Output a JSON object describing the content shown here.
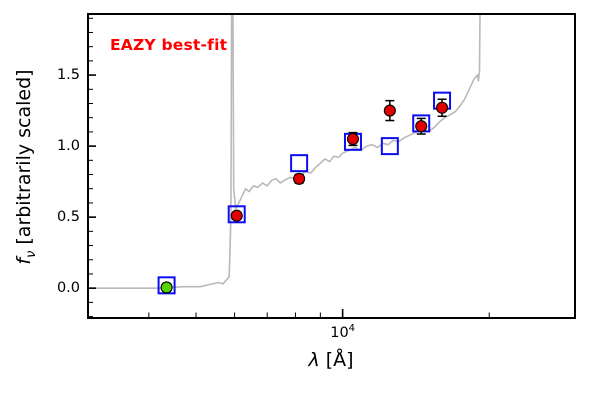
{
  "title_annotation": "EAZY best-fit",
  "axes": {
    "ylabel": {
      "var": "f",
      "sub": "ν",
      "rest": " [arbitrarily scaled]"
    },
    "xlabel": {
      "var": "λ",
      "rest": " [Å]"
    },
    "xtick_label": {
      "base": "10",
      "exp": "4"
    }
  },
  "colors": {
    "annotation": "#ff0000",
    "spectrum": "#b9b9b9",
    "model_square": "#0d0df2",
    "observed_red": "#e00000",
    "flagged_green": "#55d400",
    "frame": "#000000"
  },
  "chart_data": {
    "type": "line",
    "title": "EAZY best-fit",
    "xlabel": "λ [Å]",
    "ylabel": "f_ν [arbitrarily scaled]",
    "xscale": "log",
    "xlim": [
      3000,
      30000
    ],
    "ylim": [
      -0.21,
      1.93
    ],
    "yticks": [
      {
        "value": 0.0,
        "label": "0.0"
      },
      {
        "value": 0.5,
        "label": "0.5"
      },
      {
        "value": 1.0,
        "label": "1.0"
      },
      {
        "value": 1.5,
        "label": "1.5"
      }
    ],
    "ytick_minor_step": 0.1,
    "xticks_major": [
      10000
    ],
    "xticks_minor": [
      4000,
      5000,
      6000,
      7000,
      8000,
      9000,
      20000
    ],
    "legend": "none",
    "series": {
      "model_spectrum": {
        "name": "best-fit model spectrum",
        "color": "#b9b9b9",
        "points": [
          [
            3000,
            0.0
          ],
          [
            3600,
            0.0
          ],
          [
            4200,
            0.0
          ],
          [
            4700,
            0.01
          ],
          [
            5100,
            0.01
          ],
          [
            5400,
            0.03
          ],
          [
            5550,
            0.04
          ],
          [
            5680,
            0.03
          ],
          [
            5780,
            0.06
          ],
          [
            5850,
            0.08
          ],
          [
            5895,
            0.5
          ],
          [
            5920,
            2.3
          ],
          [
            5945,
            2.3
          ],
          [
            5975,
            0.7
          ],
          [
            6030,
            0.56
          ],
          [
            6120,
            0.6
          ],
          [
            6220,
            0.65
          ],
          [
            6320,
            0.7
          ],
          [
            6430,
            0.68
          ],
          [
            6550,
            0.72
          ],
          [
            6700,
            0.71
          ],
          [
            6850,
            0.74
          ],
          [
            7000,
            0.72
          ],
          [
            7150,
            0.76
          ],
          [
            7300,
            0.77
          ],
          [
            7450,
            0.74
          ],
          [
            7600,
            0.76
          ],
          [
            7800,
            0.78
          ],
          [
            8000,
            0.77
          ],
          [
            8200,
            0.8
          ],
          [
            8400,
            0.82
          ],
          [
            8600,
            0.81
          ],
          [
            8800,
            0.85
          ],
          [
            9000,
            0.88
          ],
          [
            9200,
            0.91
          ],
          [
            9400,
            0.89
          ],
          [
            9600,
            0.93
          ],
          [
            9800,
            0.92
          ],
          [
            10000,
            0.95
          ],
          [
            10300,
            0.97
          ],
          [
            10600,
            0.99
          ],
          [
            10900,
            0.97
          ],
          [
            11200,
            1.0
          ],
          [
            11500,
            1.01
          ],
          [
            11800,
            0.99
          ],
          [
            12100,
            1.02
          ],
          [
            12400,
            1.01
          ],
          [
            12700,
            1.04
          ],
          [
            13000,
            1.03
          ],
          [
            13400,
            1.06
          ],
          [
            13800,
            1.08
          ],
          [
            14200,
            1.1
          ],
          [
            14600,
            1.12
          ],
          [
            15000,
            1.1
          ],
          [
            15400,
            1.13
          ],
          [
            15800,
            1.17
          ],
          [
            16200,
            1.2
          ],
          [
            16600,
            1.22
          ],
          [
            17000,
            1.24
          ],
          [
            17400,
            1.28
          ],
          [
            17800,
            1.33
          ],
          [
            18200,
            1.4
          ],
          [
            18600,
            1.47
          ],
          [
            18900,
            1.5
          ],
          [
            19000,
            1.46
          ],
          [
            19100,
            1.53
          ],
          [
            19200,
            2.4
          ]
        ]
      },
      "model_photometry": {
        "name": "model photometry (open squares)",
        "color": "#0d0df2",
        "marker": "open-square",
        "points": [
          [
            4350,
            0.02
          ],
          [
            6060,
            0.52
          ],
          [
            8140,
            0.88
          ],
          [
            10500,
            1.03
          ],
          [
            12500,
            1.0
          ],
          [
            14500,
            1.16
          ],
          [
            16000,
            1.32
          ]
        ]
      },
      "observed_photometry": {
        "name": "observed photometry (filled circles with errors)",
        "color": "#e00000",
        "marker": "filled-circle",
        "points_xye": [
          [
            6060,
            0.51,
            0.025
          ],
          [
            8140,
            0.77,
            0.03
          ],
          [
            10500,
            1.05,
            0.045
          ],
          [
            12500,
            1.25,
            0.07
          ],
          [
            14500,
            1.14,
            0.055
          ],
          [
            16000,
            1.27,
            0.06
          ]
        ]
      },
      "flagged_photometry": {
        "name": "flagged point (green circle)",
        "color": "#55d400",
        "marker": "filled-circle",
        "points_xye": [
          [
            4350,
            0.005,
            0.025
          ]
        ]
      }
    }
  }
}
